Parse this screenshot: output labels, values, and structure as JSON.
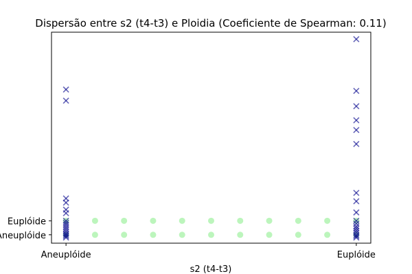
{
  "chart_data": {
    "type": "scatter",
    "title": "Dispersão entre s2 (t4-t3) e Ploidia (Coeficiente de Spearman: 0.11)",
    "xlabel": "s2 (t4-t3)",
    "ylabel": "",
    "x_ticks": [
      {
        "label": "Aneuplóide",
        "value": 0
      },
      {
        "label": "Euplóide",
        "value": 1
      }
    ],
    "y_ticks": [
      {
        "label": "Aneuplóide",
        "value": 0
      },
      {
        "label": "Euplóide",
        "value": 1
      }
    ],
    "xlim": [
      -0.05,
      1.05
    ],
    "ylim": [
      -0.6,
      14.5
    ],
    "grid": false,
    "series": [
      {
        "marker": "x",
        "color": "#00008b",
        "points": [
          [
            0,
            10.4
          ],
          [
            0,
            9.6
          ],
          [
            0,
            2.6
          ],
          [
            0,
            2.3
          ],
          [
            0,
            1.8
          ],
          [
            0,
            1.55
          ],
          [
            0,
            1.0
          ],
          [
            0,
            0.85
          ],
          [
            0,
            0.7
          ],
          [
            0,
            0.55
          ],
          [
            0,
            0.4
          ],
          [
            0,
            0.25
          ],
          [
            0,
            0.1
          ],
          [
            0,
            0.0
          ],
          [
            0,
            -0.1
          ],
          [
            0,
            -0.2
          ],
          [
            1,
            14.0
          ],
          [
            1,
            10.3
          ],
          [
            1,
            9.2
          ],
          [
            1,
            8.2
          ],
          [
            1,
            7.5
          ],
          [
            1,
            6.5
          ],
          [
            1,
            3.0
          ],
          [
            1,
            2.4
          ],
          [
            1,
            1.6
          ],
          [
            1,
            1.0
          ],
          [
            1,
            0.8
          ],
          [
            1,
            0.6
          ],
          [
            1,
            0.45
          ],
          [
            1,
            0.3
          ],
          [
            1,
            0.15
          ],
          [
            1,
            0.0
          ],
          [
            1,
            -0.1
          ],
          [
            1,
            -0.2
          ]
        ]
      },
      {
        "marker": "o",
        "color": "#90ee90",
        "points": [
          [
            0,
            1
          ],
          [
            0.1,
            1
          ],
          [
            0.2,
            1
          ],
          [
            0.3,
            1
          ],
          [
            0.4,
            1
          ],
          [
            0.5,
            1
          ],
          [
            0.6,
            1
          ],
          [
            0.7,
            1
          ],
          [
            0.8,
            1
          ],
          [
            0.9,
            1
          ],
          [
            1,
            1
          ],
          [
            0,
            0
          ],
          [
            0.1,
            0
          ],
          [
            0.2,
            0
          ],
          [
            0.3,
            0
          ],
          [
            0.4,
            0
          ],
          [
            0.5,
            0
          ],
          [
            0.6,
            0
          ],
          [
            0.7,
            0
          ],
          [
            0.8,
            0
          ],
          [
            0.9,
            0
          ],
          [
            1,
            0
          ]
        ]
      }
    ]
  }
}
